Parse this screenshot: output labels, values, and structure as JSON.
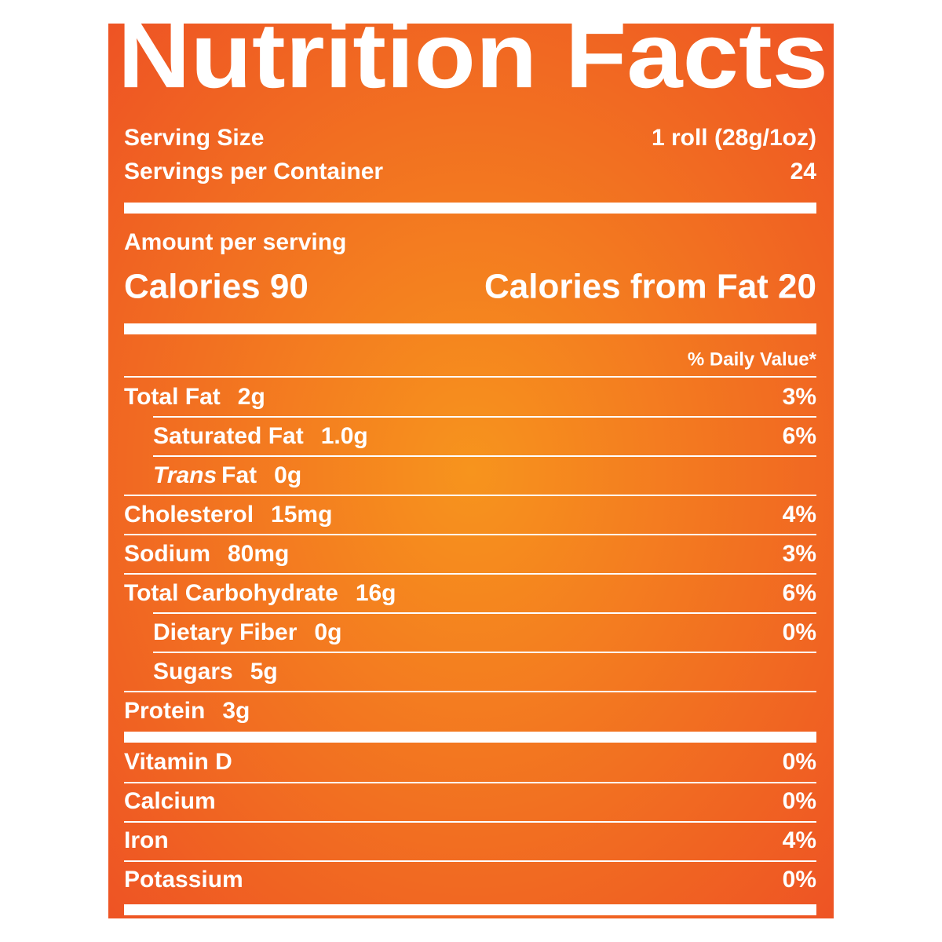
{
  "header": {
    "title": "Nutrition Facts"
  },
  "serving": {
    "size_label": "Serving Size",
    "size_value": "1 roll (28g/1oz)",
    "per_container_label": "Servings per Container",
    "per_container_value": "24"
  },
  "amount_label": "Amount per serving",
  "calories": {
    "calories": "Calories 90",
    "from_fat": "Calories from Fat 20"
  },
  "daily_value_header": "% Daily Value*",
  "nutrients": [
    {
      "name": "Total Fat",
      "amount": "2g",
      "dv": "3%"
    },
    {
      "name": "Saturated Fat",
      "amount": "1.0g",
      "dv": "6%",
      "indent": true
    },
    {
      "name_italic": "Trans",
      "name": "Fat",
      "amount": "0g",
      "indent": true
    },
    {
      "name": "Cholesterol",
      "amount": "15mg",
      "dv": "4%"
    },
    {
      "name": "Sodium",
      "amount": "80mg",
      "dv": "3%"
    },
    {
      "name": "Total Carbohydrate",
      "amount": "16g",
      "dv": "6%"
    },
    {
      "name": "Dietary Fiber",
      "amount": "0g",
      "dv": "0%",
      "indent": true
    },
    {
      "name": "Sugars",
      "amount": "5g",
      "indent": true
    },
    {
      "name": "Protein",
      "amount": "3g"
    }
  ],
  "vitamins": [
    {
      "name": "Vitamin D",
      "dv": "0%"
    },
    {
      "name": "Calcium",
      "dv": "0%"
    },
    {
      "name": "Iron",
      "dv": "4%"
    },
    {
      "name": "Potassium",
      "dv": "0%"
    }
  ]
}
